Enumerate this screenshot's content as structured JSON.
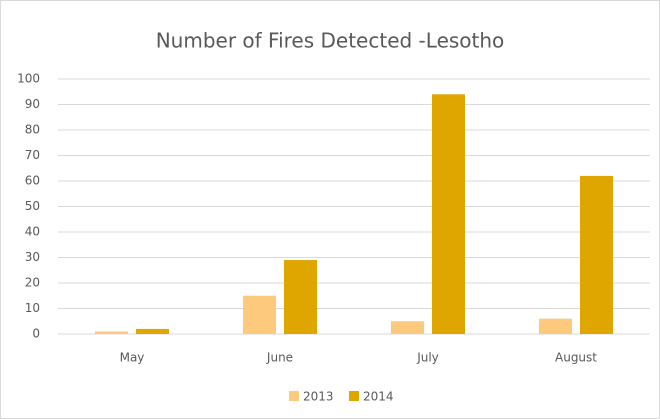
{
  "chart_data": {
    "type": "bar",
    "title": "Number of Fires Detected -Lesotho",
    "categories": [
      "May",
      "June",
      "July",
      "August"
    ],
    "series": [
      {
        "name": "2013",
        "color": "#fdc97c",
        "values": [
          1,
          15,
          5,
          6
        ]
      },
      {
        "name": "2014",
        "color": "#dfa600",
        "values": [
          2,
          29,
          94,
          62
        ]
      }
    ],
    "ylim": [
      0,
      100
    ],
    "yticks": [
      0,
      10,
      20,
      30,
      40,
      50,
      60,
      70,
      80,
      90,
      100
    ],
    "grid": true,
    "legend": "bottom"
  }
}
